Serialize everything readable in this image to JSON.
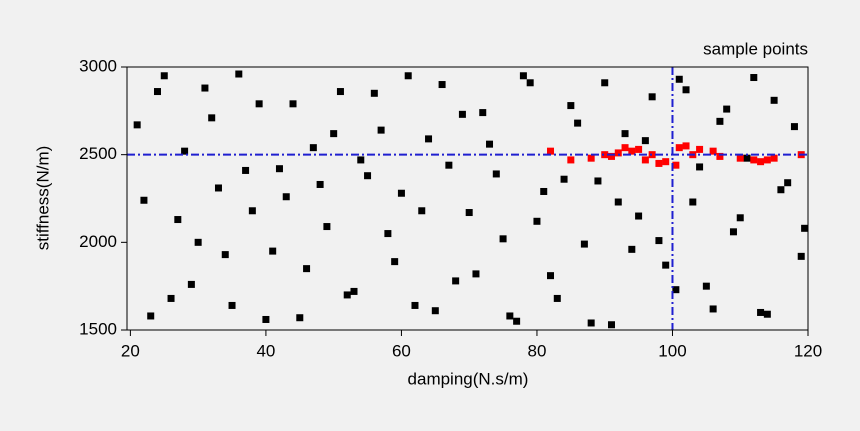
{
  "chart_data": {
    "type": "scatter",
    "xlabel": "damping(N.s/m)",
    "ylabel": "stiffness(N/m)",
    "annotation": "sample points",
    "xlim": [
      19.5,
      120
    ],
    "ylim": [
      1500,
      3000
    ],
    "xticks": [
      20,
      40,
      60,
      80,
      100,
      120
    ],
    "yticks": [
      1500,
      2000,
      2500,
      3000
    ],
    "hlines": [
      2500
    ],
    "vlines": [
      100
    ],
    "reference_color": "#1f1fd0",
    "series": [
      {
        "color": "#000000",
        "x": [
          21,
          23,
          25,
          27,
          29,
          31,
          33,
          35,
          37,
          39,
          41,
          43,
          45,
          47,
          49,
          51,
          53,
          55,
          57,
          59,
          61,
          63,
          65,
          67,
          69,
          71,
          73,
          75,
          77,
          79,
          81,
          83,
          85,
          87,
          89,
          91,
          93,
          95,
          97,
          99,
          101,
          103,
          105,
          107,
          109,
          111,
          113,
          115,
          117,
          119,
          22,
          24,
          26,
          28,
          30,
          32,
          34,
          36,
          38,
          40,
          42,
          44,
          46,
          48,
          50,
          52,
          54,
          56,
          58,
          60,
          62,
          64,
          66,
          68,
          70,
          72,
          74,
          76,
          78,
          80,
          82,
          84,
          86,
          88,
          90,
          92,
          94,
          96,
          98,
          100.5,
          102,
          104,
          106,
          108,
          110,
          112,
          114,
          116,
          118,
          119.5
        ],
        "values": [
          2670,
          1580,
          2950,
          2130,
          1760,
          2880,
          2310,
          1640,
          2410,
          2790,
          1950,
          2260,
          1570,
          2540,
          2090,
          2860,
          1720,
          2380,
          2640,
          1890,
          2950,
          2180,
          1610,
          2440,
          2730,
          1820,
          2560,
          2020,
          1550,
          2910,
          2290,
          1680,
          2780,
          1990,
          2350,
          1530,
          2620,
          2150,
          2830,
          1870,
          2930,
          2230,
          1750,
          2690,
          2060,
          2480,
          1600,
          2810,
          2340,
          1920,
          2240,
          2860,
          1680,
          2520,
          2000,
          2710,
          1930,
          2960,
          2180,
          1560,
          2420,
          2790,
          1850,
          2330,
          2620,
          1700,
          2470,
          2850,
          2050,
          2280,
          1640,
          2590,
          2900,
          1780,
          2170,
          2740,
          2390,
          1580,
          2950,
          2120,
          1810,
          2360,
          2680,
          1540,
          2910,
          2230,
          1960,
          2580,
          2010,
          1730,
          2870,
          2430,
          1620,
          2760,
          2140,
          2940,
          1590,
          2300,
          2660,
          2080
        ]
      },
      {
        "color": "#ff0000",
        "x": [
          82,
          85,
          88,
          90,
          91,
          92,
          93,
          94,
          95,
          96,
          97,
          98,
          99,
          100.5,
          101,
          102,
          103,
          104,
          106,
          107,
          110,
          112,
          113,
          114,
          115,
          119
        ],
        "values": [
          2520,
          2470,
          2480,
          2500,
          2490,
          2510,
          2540,
          2520,
          2530,
          2470,
          2500,
          2450,
          2460,
          2440,
          2540,
          2550,
          2500,
          2530,
          2520,
          2490,
          2480,
          2470,
          2460,
          2470,
          2480,
          2500
        ]
      }
    ]
  }
}
